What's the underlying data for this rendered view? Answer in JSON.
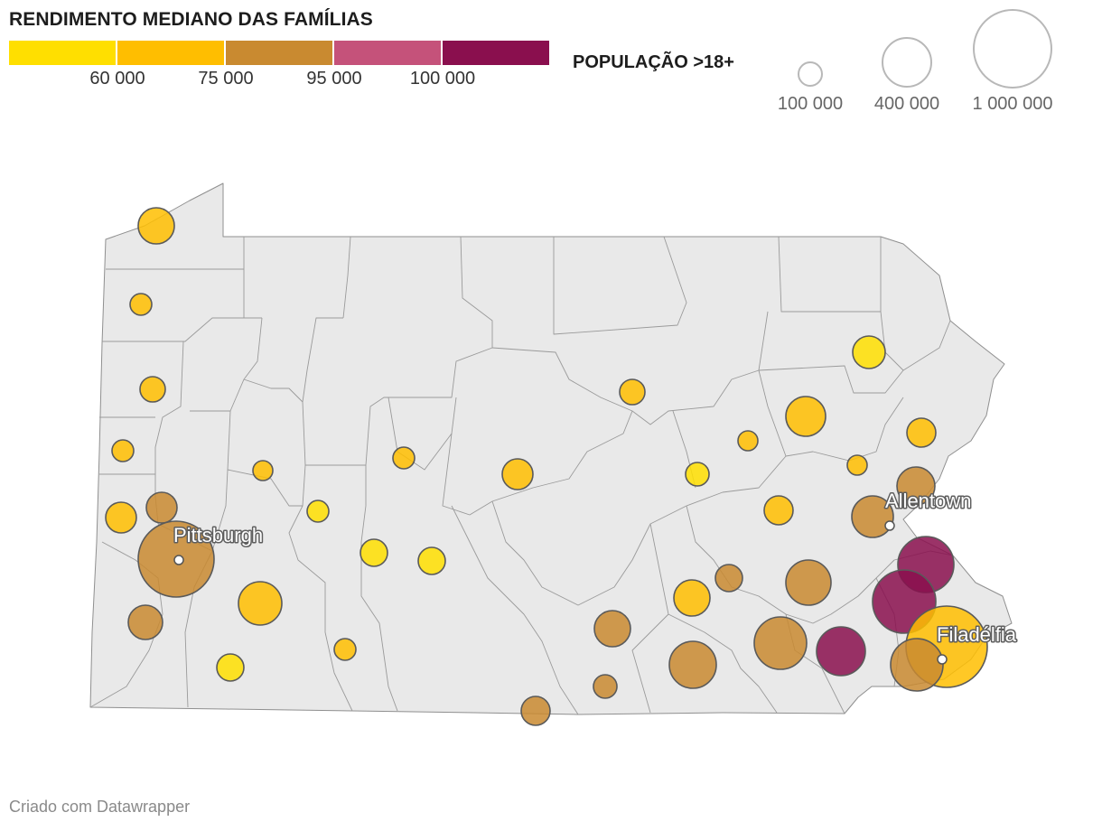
{
  "legend": {
    "title": "RENDIMENTO MEDIANO DAS FAMÍLIAS",
    "color_bins": [
      {
        "color": "#ffdf00"
      },
      {
        "color": "#ffbe00"
      },
      {
        "color": "#c98a30"
      },
      {
        "color": "#c5527a"
      },
      {
        "color": "#8a0f4e"
      }
    ],
    "ticks": [
      "60 000",
      "75 000",
      "95 000",
      "100 000"
    ]
  },
  "size_legend": {
    "title": "POPULAÇÃO >18+",
    "items": [
      {
        "label": "100 000",
        "population": 100000
      },
      {
        "label": "400 000",
        "population": 400000
      },
      {
        "label": "1 000 000",
        "population": 1000000
      }
    ]
  },
  "map": {
    "region": "Pennsylvania",
    "base_fill": "#e9e9e9",
    "border_color": "#8f8f8f",
    "cities": [
      {
        "name": "Pittsburgh"
      },
      {
        "name": "Allentown"
      },
      {
        "name": "Filadélfia"
      }
    ],
    "bubble_stroke": "#5a5a5a"
  },
  "credit": "Criado com Datawrapper"
}
